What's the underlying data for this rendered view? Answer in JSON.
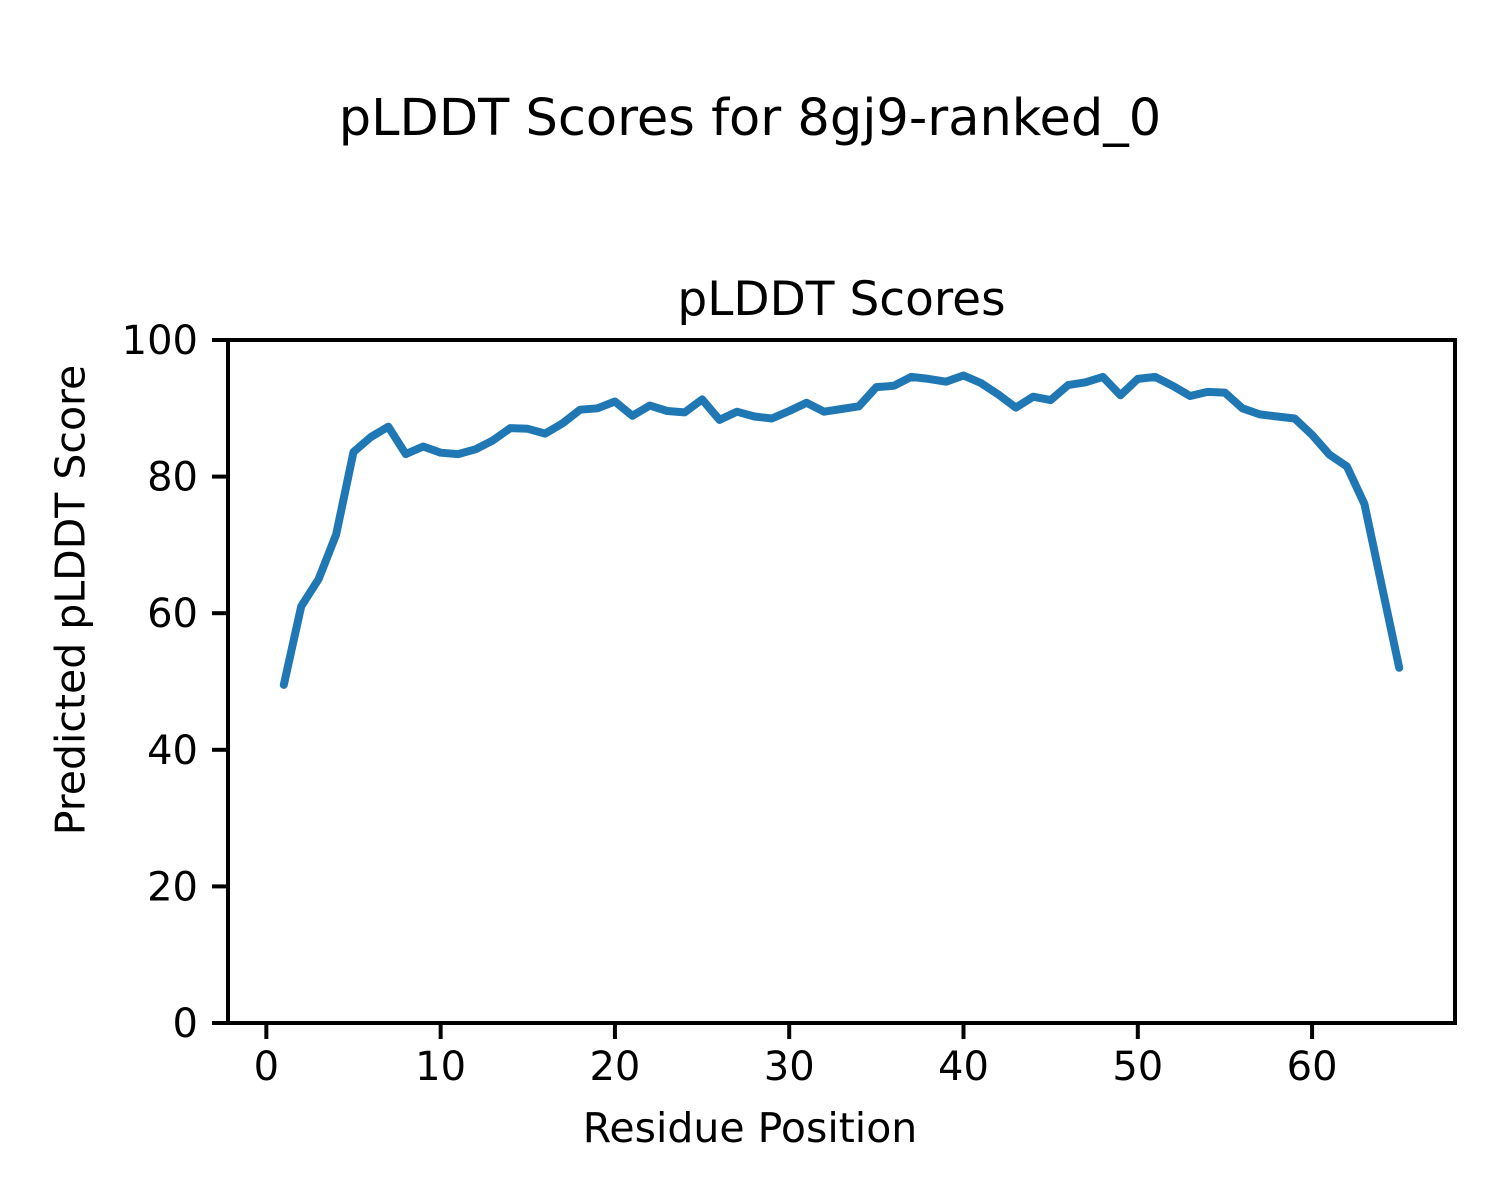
{
  "figure": {
    "suptitle": "pLDDT Scores for 8gj9-ranked_0",
    "background": "#ffffff"
  },
  "chart_data": {
    "type": "line",
    "title": "pLDDT Scores",
    "xlabel": "Residue Position",
    "ylabel": "Predicted pLDDT Score",
    "x_ticks": [
      0,
      10,
      20,
      30,
      40,
      50,
      60
    ],
    "y_ticks": [
      0,
      20,
      40,
      60,
      80,
      100
    ],
    "xlim": [
      -2.2,
      68.2
    ],
    "ylim": [
      0,
      100
    ],
    "grid": false,
    "legend": null,
    "line_color": "#1f77b4",
    "axis_color": "#000000",
    "series": [
      {
        "name": "pLDDT",
        "x": [
          1,
          2,
          3,
          4,
          5,
          6,
          7,
          8,
          9,
          10,
          11,
          12,
          13,
          14,
          15,
          16,
          17,
          18,
          19,
          20,
          21,
          22,
          23,
          24,
          25,
          26,
          27,
          28,
          29,
          30,
          31,
          32,
          33,
          34,
          35,
          36,
          37,
          38,
          39,
          40,
          41,
          42,
          43,
          44,
          45,
          46,
          47,
          48,
          49,
          50,
          51,
          52,
          53,
          54,
          55,
          56,
          57,
          58,
          59,
          60,
          61,
          62,
          63,
          64,
          65
        ],
        "values": [
          49.5,
          61,
          65,
          71.5,
          83.6,
          85.8,
          87.3,
          83.3,
          84.4,
          83.5,
          83.3,
          84,
          85.3,
          87.1,
          87,
          86.3,
          87.8,
          89.8,
          90,
          91,
          88.9,
          90.4,
          89.6,
          89.4,
          91.3,
          88.3,
          89.5,
          88.8,
          88.5,
          89.6,
          90.8,
          89.5,
          89.9,
          90.3,
          93.1,
          93.3,
          94.6,
          94.3,
          93.9,
          94.8,
          93.7,
          92,
          90.1,
          91.7,
          91.2,
          93.4,
          93.8,
          94.6,
          91.9,
          94.3,
          94.6,
          93.3,
          91.8,
          92.4,
          92.3,
          90,
          89.1,
          88.8,
          88.5,
          86.1,
          83.2,
          81.5,
          76,
          64,
          52
        ]
      }
    ]
  }
}
